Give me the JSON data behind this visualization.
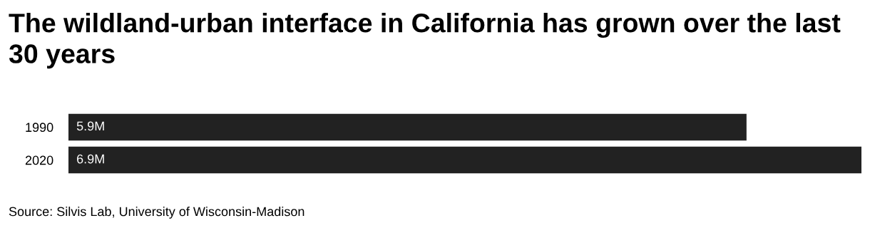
{
  "chart_data": {
    "type": "bar",
    "orientation": "horizontal",
    "title": "The wildland-urban interface in California has grown over the last 30 years",
    "categories": [
      "1990",
      "2020"
    ],
    "values": [
      5.9,
      6.9
    ],
    "value_labels": [
      "5.9M",
      "6.9M"
    ],
    "color": "#222222",
    "annotations": [
      "Source: Silvis Lab, University of Wisconsin-Madison"
    ]
  }
}
